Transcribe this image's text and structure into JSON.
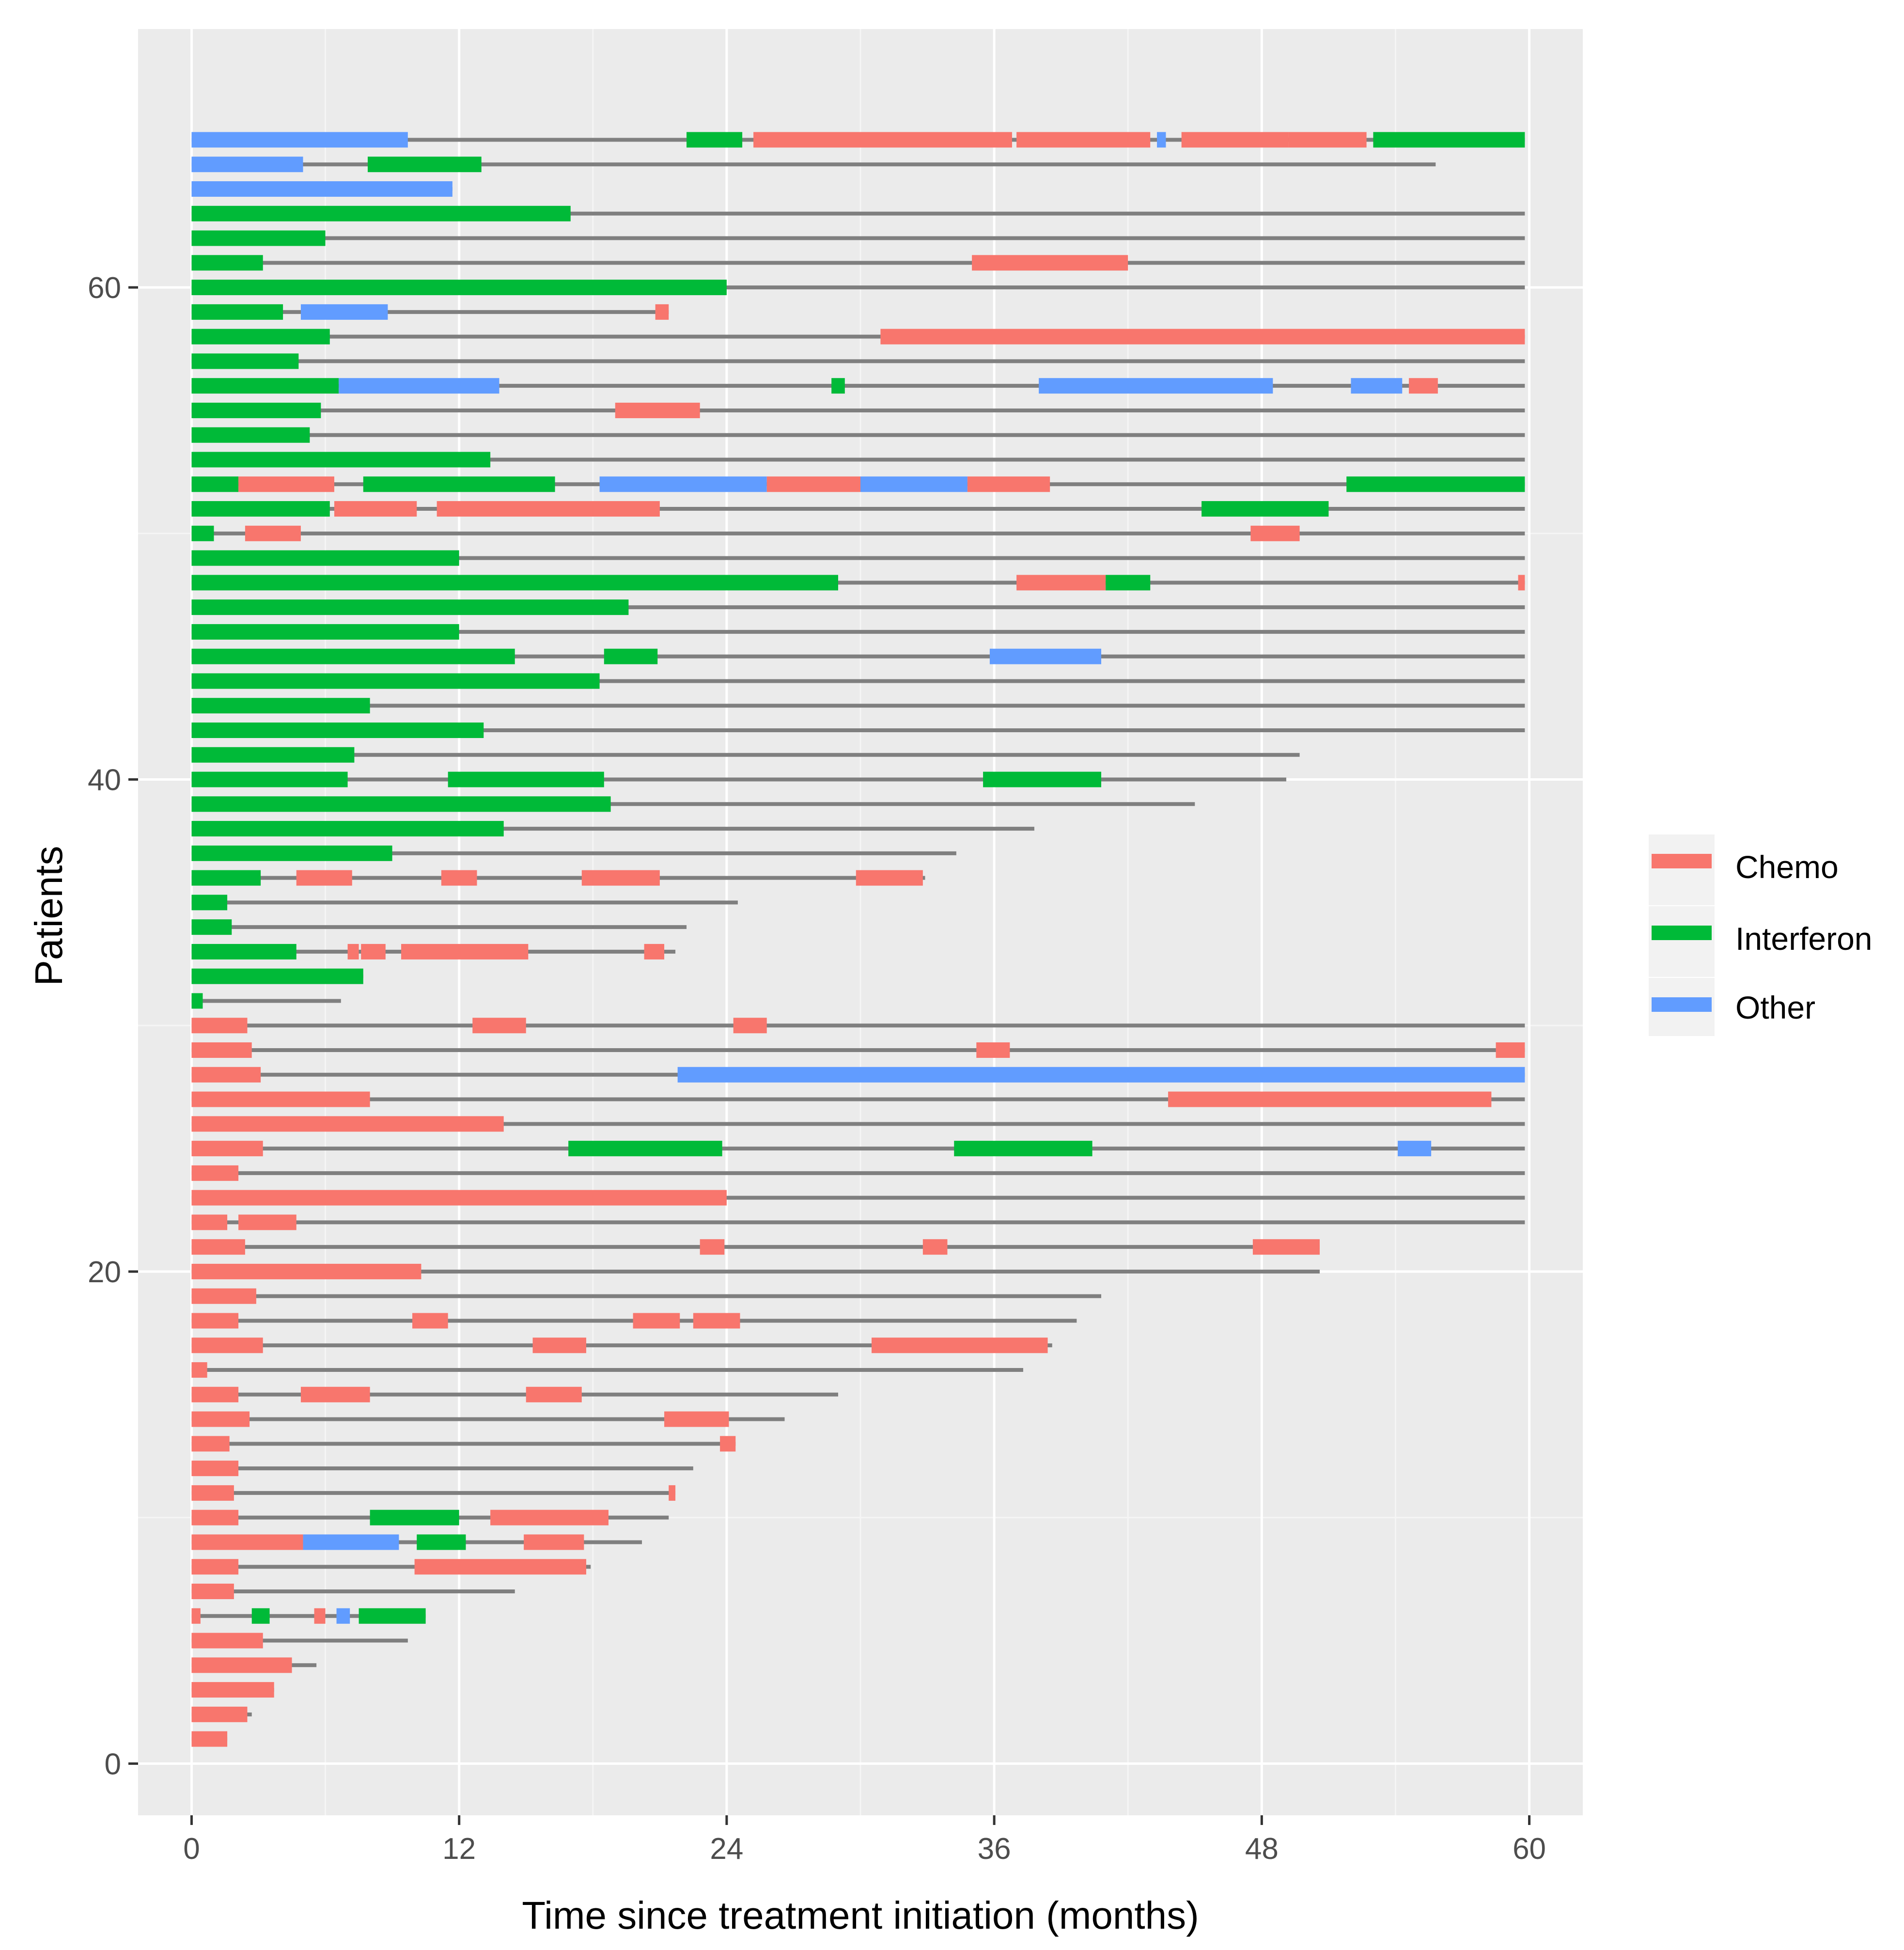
{
  "chart_data": {
    "type": "gantt",
    "title": "",
    "xlabel": "Time since treatment initiation (months)",
    "ylabel": "Patients",
    "xlim": [
      -2.4,
      62.4
    ],
    "ylim": [
      -2.1,
      70.5
    ],
    "xticks": [
      0,
      12,
      24,
      36,
      48,
      60
    ],
    "yticks": [
      0,
      20,
      40,
      60
    ],
    "grid": true,
    "legend_position": "right",
    "legend": [
      {
        "key": "C",
        "label": "Chemo",
        "color": "#F8766D"
      },
      {
        "key": "I",
        "label": "Interferon",
        "color": "#00BA38"
      },
      {
        "key": "O",
        "label": "Other",
        "color": "#619CFF"
      }
    ],
    "followup_color": "#7f7f7f",
    "patients": [
      {
        "id": 1,
        "follow": 1.6,
        "t": [
          [
            0,
            1.6,
            "C"
          ]
        ]
      },
      {
        "id": 2,
        "follow": 2.7,
        "t": [
          [
            0,
            2.5,
            "C"
          ]
        ]
      },
      {
        "id": 3,
        "follow": 3.7,
        "t": [
          [
            0,
            3.7,
            "C"
          ]
        ]
      },
      {
        "id": 4,
        "follow": 5.6,
        "t": [
          [
            0,
            4.5,
            "C"
          ]
        ]
      },
      {
        "id": 5,
        "follow": 9.7,
        "t": [
          [
            0,
            3.2,
            "C"
          ]
        ]
      },
      {
        "id": 6,
        "follow": 10.5,
        "t": [
          [
            0,
            0.4,
            "C"
          ],
          [
            2.7,
            3.5,
            "I"
          ],
          [
            5.5,
            6.0,
            "C"
          ],
          [
            6.5,
            7.1,
            "O"
          ],
          [
            7.5,
            10.5,
            "I"
          ]
        ]
      },
      {
        "id": 7,
        "follow": 14.5,
        "t": [
          [
            0,
            1.9,
            "C"
          ]
        ]
      },
      {
        "id": 8,
        "follow": 17.9,
        "t": [
          [
            0,
            2.1,
            "C"
          ],
          [
            10.0,
            17.7,
            "C"
          ]
        ]
      },
      {
        "id": 9,
        "follow": 20.2,
        "t": [
          [
            0,
            5.0,
            "C"
          ],
          [
            5.0,
            9.3,
            "O"
          ],
          [
            10.1,
            12.3,
            "I"
          ],
          [
            14.9,
            17.6,
            "C"
          ]
        ]
      },
      {
        "id": 10,
        "follow": 21.4,
        "t": [
          [
            0,
            2.1,
            "C"
          ],
          [
            8.0,
            12.0,
            "I"
          ],
          [
            13.4,
            18.7,
            "C"
          ]
        ]
      },
      {
        "id": 11,
        "follow": 21.7,
        "t": [
          [
            0,
            1.9,
            "C"
          ],
          [
            21.4,
            21.7,
            "C"
          ]
        ]
      },
      {
        "id": 12,
        "follow": 22.5,
        "t": [
          [
            0,
            2.1,
            "C"
          ]
        ]
      },
      {
        "id": 13,
        "follow": 24.4,
        "t": [
          [
            0,
            1.7,
            "C"
          ],
          [
            23.7,
            24.4,
            "C"
          ]
        ]
      },
      {
        "id": 14,
        "follow": 26.6,
        "t": [
          [
            0,
            2.6,
            "C"
          ],
          [
            21.2,
            24.1,
            "C"
          ]
        ]
      },
      {
        "id": 15,
        "follow": 29.0,
        "t": [
          [
            0,
            2.1,
            "C"
          ],
          [
            4.9,
            8.0,
            "C"
          ],
          [
            15.0,
            17.5,
            "C"
          ]
        ]
      },
      {
        "id": 16,
        "follow": 37.3,
        "t": [
          [
            0,
            0.7,
            "C"
          ]
        ]
      },
      {
        "id": 17,
        "follow": 38.6,
        "t": [
          [
            0,
            3.2,
            "C"
          ],
          [
            15.3,
            17.7,
            "C"
          ],
          [
            30.5,
            38.4,
            "C"
          ]
        ]
      },
      {
        "id": 18,
        "follow": 39.7,
        "t": [
          [
            0,
            2.1,
            "C"
          ],
          [
            9.9,
            11.5,
            "C"
          ],
          [
            19.8,
            21.9,
            "C"
          ],
          [
            22.5,
            24.6,
            "C"
          ]
        ]
      },
      {
        "id": 19,
        "follow": 40.8,
        "t": [
          [
            0,
            2.9,
            "C"
          ]
        ]
      },
      {
        "id": 20,
        "follow": 50.6,
        "t": [
          [
            0,
            10.3,
            "C"
          ]
        ]
      },
      {
        "id": 21,
        "follow": 50.6,
        "t": [
          [
            0,
            2.4,
            "C"
          ],
          [
            22.8,
            23.9,
            "C"
          ],
          [
            32.8,
            33.9,
            "C"
          ],
          [
            47.6,
            50.6,
            "C"
          ]
        ]
      },
      {
        "id": 22,
        "follow": 59.8,
        "t": [
          [
            0,
            1.6,
            "C"
          ],
          [
            2.1,
            4.7,
            "C"
          ]
        ]
      },
      {
        "id": 23,
        "follow": 59.8,
        "t": [
          [
            0,
            24.0,
            "C"
          ]
        ]
      },
      {
        "id": 24,
        "follow": 59.8,
        "t": [
          [
            0,
            2.1,
            "C"
          ]
        ]
      },
      {
        "id": 25,
        "follow": 59.8,
        "t": [
          [
            0,
            3.2,
            "C"
          ],
          [
            16.9,
            23.8,
            "I"
          ],
          [
            34.2,
            40.4,
            "I"
          ],
          [
            54.1,
            55.6,
            "O"
          ]
        ]
      },
      {
        "id": 26,
        "follow": 59.8,
        "t": [
          [
            0,
            14.0,
            "C"
          ]
        ]
      },
      {
        "id": 27,
        "follow": 59.8,
        "t": [
          [
            0,
            8.0,
            "C"
          ],
          [
            43.8,
            58.3,
            "C"
          ]
        ]
      },
      {
        "id": 28,
        "follow": 59.8,
        "t": [
          [
            0,
            3.1,
            "C"
          ],
          [
            21.8,
            59.8,
            "O"
          ]
        ]
      },
      {
        "id": 29,
        "follow": 59.8,
        "t": [
          [
            0,
            2.7,
            "C"
          ],
          [
            35.2,
            36.7,
            "C"
          ],
          [
            58.5,
            59.8,
            "C"
          ]
        ]
      },
      {
        "id": 30,
        "follow": 59.8,
        "t": [
          [
            0,
            2.5,
            "C"
          ],
          [
            12.6,
            15.0,
            "C"
          ],
          [
            24.3,
            25.8,
            "C"
          ]
        ]
      },
      {
        "id": 31,
        "follow": 6.7,
        "t": [
          [
            0,
            0.5,
            "I"
          ]
        ]
      },
      {
        "id": 32,
        "follow": 7.7,
        "t": [
          [
            0,
            7.7,
            "I"
          ]
        ]
      },
      {
        "id": 33,
        "follow": 21.7,
        "t": [
          [
            0,
            4.7,
            "I"
          ],
          [
            7.0,
            7.5,
            "C"
          ],
          [
            7.6,
            8.7,
            "C"
          ],
          [
            9.4,
            15.1,
            "C"
          ],
          [
            20.3,
            21.2,
            "C"
          ]
        ]
      },
      {
        "id": 34,
        "follow": 22.2,
        "t": [
          [
            0,
            1.8,
            "I"
          ]
        ]
      },
      {
        "id": 35,
        "follow": 24.5,
        "t": [
          [
            0,
            1.6,
            "I"
          ]
        ]
      },
      {
        "id": 36,
        "follow": 32.9,
        "t": [
          [
            0,
            3.1,
            "I"
          ],
          [
            4.7,
            7.2,
            "C"
          ],
          [
            11.2,
            12.8,
            "C"
          ],
          [
            17.5,
            21.0,
            "C"
          ],
          [
            29.8,
            32.8,
            "C"
          ]
        ]
      },
      {
        "id": 37,
        "follow": 34.3,
        "t": [
          [
            0,
            9.0,
            "I"
          ]
        ]
      },
      {
        "id": 38,
        "follow": 37.8,
        "t": [
          [
            0,
            14.0,
            "I"
          ]
        ]
      },
      {
        "id": 39,
        "follow": 45.0,
        "t": [
          [
            0,
            18.8,
            "I"
          ]
        ]
      },
      {
        "id": 40,
        "follow": 49.1,
        "t": [
          [
            0,
            7.0,
            "I"
          ],
          [
            11.5,
            18.5,
            "I"
          ],
          [
            35.5,
            40.8,
            "I"
          ]
        ]
      },
      {
        "id": 41,
        "follow": 49.7,
        "t": [
          [
            0,
            7.3,
            "I"
          ]
        ]
      },
      {
        "id": 42,
        "follow": 59.8,
        "t": [
          [
            0,
            13.1,
            "I"
          ]
        ]
      },
      {
        "id": 43,
        "follow": 59.8,
        "t": [
          [
            0,
            8.0,
            "I"
          ]
        ]
      },
      {
        "id": 44,
        "follow": 59.8,
        "t": [
          [
            0,
            18.3,
            "I"
          ]
        ]
      },
      {
        "id": 45,
        "follow": 59.8,
        "t": [
          [
            0,
            14.5,
            "I"
          ],
          [
            18.5,
            20.9,
            "I"
          ],
          [
            35.8,
            40.8,
            "O"
          ]
        ]
      },
      {
        "id": 46,
        "follow": 59.8,
        "t": [
          [
            0,
            12.0,
            "I"
          ]
        ]
      },
      {
        "id": 47,
        "follow": 59.8,
        "t": [
          [
            0,
            19.6,
            "I"
          ]
        ]
      },
      {
        "id": 48,
        "follow": 59.8,
        "t": [
          [
            0,
            29.0,
            "I"
          ],
          [
            37.0,
            41.0,
            "C"
          ],
          [
            41.0,
            43.0,
            "I"
          ],
          [
            59.5,
            59.8,
            "C"
          ]
        ]
      },
      {
        "id": 49,
        "follow": 59.8,
        "t": [
          [
            0,
            12.0,
            "I"
          ]
        ]
      },
      {
        "id": 50,
        "follow": 59.8,
        "t": [
          [
            0,
            1.0,
            "I"
          ],
          [
            2.4,
            4.9,
            "C"
          ],
          [
            47.5,
            49.7,
            "C"
          ]
        ]
      },
      {
        "id": 51,
        "follow": 59.8,
        "t": [
          [
            0,
            6.2,
            "I"
          ],
          [
            6.4,
            10.1,
            "C"
          ],
          [
            11.0,
            21.0,
            "C"
          ],
          [
            45.3,
            51.0,
            "I"
          ]
        ]
      },
      {
        "id": 52,
        "follow": 59.8,
        "t": [
          [
            0,
            2.1,
            "I"
          ],
          [
            2.1,
            6.4,
            "C"
          ],
          [
            7.7,
            16.3,
            "I"
          ],
          [
            18.3,
            25.8,
            "O"
          ],
          [
            25.8,
            30.0,
            "C"
          ],
          [
            30.0,
            34.8,
            "O"
          ],
          [
            34.8,
            38.5,
            "C"
          ],
          [
            51.8,
            59.8,
            "I"
          ]
        ]
      },
      {
        "id": 53,
        "follow": 59.8,
        "t": [
          [
            0,
            13.4,
            "I"
          ]
        ]
      },
      {
        "id": 54,
        "follow": 59.8,
        "t": [
          [
            0,
            5.3,
            "I"
          ]
        ]
      },
      {
        "id": 55,
        "follow": 59.8,
        "t": [
          [
            0,
            5.8,
            "I"
          ],
          [
            19.0,
            22.8,
            "C"
          ]
        ]
      },
      {
        "id": 56,
        "follow": 59.8,
        "t": [
          [
            0,
            6.6,
            "I"
          ],
          [
            6.6,
            13.8,
            "O"
          ],
          [
            28.7,
            29.3,
            "I"
          ],
          [
            38.0,
            48.5,
            "O"
          ],
          [
            52.0,
            54.3,
            "O"
          ],
          [
            54.6,
            55.9,
            "C"
          ]
        ]
      },
      {
        "id": 57,
        "follow": 59.8,
        "t": [
          [
            0,
            4.8,
            "I"
          ]
        ]
      },
      {
        "id": 58,
        "follow": 59.8,
        "t": [
          [
            0,
            6.2,
            "I"
          ],
          [
            30.9,
            59.8,
            "C"
          ]
        ]
      },
      {
        "id": 59,
        "follow": 21.4,
        "t": [
          [
            0,
            4.1,
            "I"
          ],
          [
            4.9,
            8.8,
            "O"
          ],
          [
            20.8,
            21.4,
            "C"
          ]
        ]
      },
      {
        "id": 60,
        "follow": 59.8,
        "t": [
          [
            0,
            24.0,
            "I"
          ]
        ]
      },
      {
        "id": 61,
        "follow": 59.8,
        "t": [
          [
            0,
            3.2,
            "I"
          ],
          [
            35.0,
            42.0,
            "C"
          ]
        ]
      },
      {
        "id": 62,
        "follow": 59.8,
        "t": [
          [
            0,
            6.0,
            "I"
          ]
        ]
      },
      {
        "id": 63,
        "follow": 59.8,
        "t": [
          [
            0,
            17.0,
            "I"
          ]
        ]
      },
      {
        "id": 64,
        "follow": 11.7,
        "t": [
          [
            0,
            11.7,
            "O"
          ]
        ]
      },
      {
        "id": 65,
        "follow": 55.8,
        "t": [
          [
            0,
            5.0,
            "O"
          ],
          [
            7.9,
            13.0,
            "I"
          ]
        ]
      },
      {
        "id": 66,
        "follow": 59.8,
        "t": [
          [
            0,
            9.7,
            "O"
          ],
          [
            22.2,
            24.7,
            "I"
          ],
          [
            25.2,
            36.8,
            "C"
          ],
          [
            37.0,
            43.0,
            "C"
          ],
          [
            43.3,
            43.7,
            "O"
          ],
          [
            44.4,
            49.2,
            "C"
          ],
          [
            49.2,
            52.7,
            "C"
          ],
          [
            53.0,
            59.8,
            "I"
          ]
        ]
      }
    ]
  }
}
